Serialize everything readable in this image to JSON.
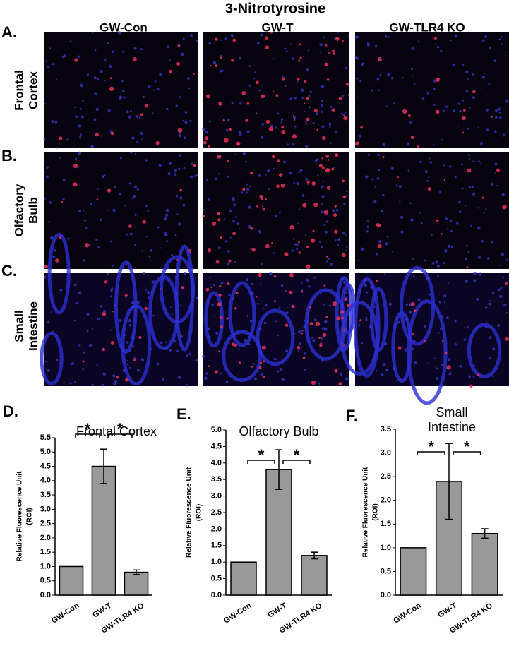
{
  "figure": {
    "title": "3-Nitrotyrosine",
    "columns": [
      "GW-Con",
      "GW-T",
      "GW-TLR4 KO"
    ],
    "rows": [
      [
        "Frontal",
        "Cortex"
      ],
      [
        "Olfactory",
        "Bulb"
      ],
      [
        "Small",
        "Intestine"
      ]
    ],
    "row_letters": [
      "A.",
      "B.",
      "C."
    ],
    "chart_letters": [
      "D.",
      "E.",
      "F."
    ]
  },
  "chart_data": [
    {
      "type": "bar",
      "title": [
        "Frontal Cortex"
      ],
      "ylabel": [
        "Relative Fluorescence Unit",
        "(ROI)"
      ],
      "categories": [
        "GW-Con",
        "GW-T",
        "GW-TLR4 KO"
      ],
      "values": [
        1.0,
        4.5,
        0.8
      ],
      "errors": [
        null,
        0.6,
        0.08
      ],
      "color": "#999999",
      "annotations": [
        "*",
        "*"
      ],
      "ylim": [
        0,
        5.5
      ],
      "yticks": [
        {
          "value": 0,
          "label": "0.0"
        },
        0.5,
        {
          "value": 1,
          "label": "1.0"
        },
        1.5,
        {
          "value": 2,
          "label": "2.0"
        },
        2.5,
        {
          "value": 3,
          "label": "3.0"
        },
        3.5,
        {
          "value": 4,
          "label": "4.0"
        },
        4.5,
        {
          "value": 5,
          "label": "5.0"
        },
        5.5
      ]
    },
    {
      "type": "bar",
      "title": [
        "Olfactory Bulb"
      ],
      "ylabel": [
        "Relative Fluorescence Unit",
        "(ROI)"
      ],
      "categories": [
        "GW-Con",
        "GW-T",
        "GW-TLR4 KO"
      ],
      "values": [
        1.0,
        3.8,
        1.2
      ],
      "errors": [
        null,
        0.6,
        0.1
      ],
      "color": "#999999",
      "annotations": [
        "*",
        "*"
      ],
      "ylim": [
        0,
        5
      ],
      "yticks": [
        {
          "value": 0,
          "label": "0.0"
        },
        0.5,
        {
          "value": 1,
          "label": "1.0"
        },
        1.5,
        {
          "value": 2,
          "label": "2.0"
        },
        2.5,
        {
          "value": 3,
          "label": "3.0"
        },
        3.5,
        {
          "value": 4,
          "label": "4.0"
        },
        4.5,
        {
          "value": 5,
          "label": "5.0"
        }
      ]
    },
    {
      "type": "bar",
      "title": [
        "Small",
        "Intestine"
      ],
      "ylabel": [
        "Relative Fluorescence Unit",
        "(ROI)"
      ],
      "categories": [
        "GW-Con",
        "GW-T",
        "GW-TLR4 KO"
      ],
      "values": [
        1.0,
        2.4,
        1.3
      ],
      "errors": [
        null,
        0.8,
        0.1
      ],
      "color": "#999999",
      "annotations": [
        "*",
        "*"
      ],
      "ylim": [
        0,
        3.5
      ],
      "yticks": [
        {
          "value": 0,
          "label": "0.0"
        },
        0.5,
        {
          "value": 1,
          "label": "1.0"
        },
        1.5,
        {
          "value": 2,
          "label": "2.0"
        },
        2.5,
        {
          "value": 3,
          "label": "3.0"
        },
        3.5
      ]
    }
  ]
}
